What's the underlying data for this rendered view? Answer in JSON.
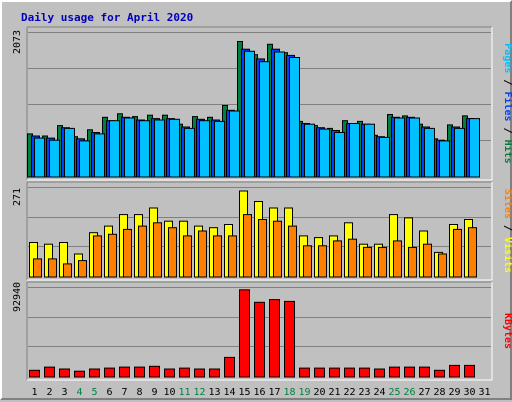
{
  "chart_data": {
    "title": "Daily usage for April 2020",
    "type": "bar",
    "categories": [
      "1",
      "2",
      "3",
      "4",
      "5",
      "6",
      "7",
      "8",
      "9",
      "10",
      "11",
      "12",
      "13",
      "14",
      "15",
      "16",
      "17",
      "18",
      "19",
      "20",
      "21",
      "22",
      "23",
      "24",
      "25",
      "26",
      "27",
      "28",
      "29",
      "30",
      "31"
    ],
    "weekend_days": [
      "4",
      "5",
      "11",
      "12",
      "18",
      "19",
      "25",
      "26"
    ],
    "panels": [
      {
        "id": "hits",
        "ymax": 2073,
        "ymax_label": "2073",
        "ylabel_parts": [
          {
            "text": "Pages",
            "color": "#00c0ff"
          },
          {
            "text": " / ",
            "color": "#000000"
          },
          {
            "text": "Files",
            "color": "#0040ff"
          },
          {
            "text": " / ",
            "color": "#000000"
          },
          {
            "text": "Hits",
            "color": "#008040"
          }
        ],
        "series": [
          {
            "name": "Hits",
            "color": "#008040",
            "values": [
              620,
              590,
              740,
              580,
              680,
              860,
              910,
              870,
              890,
              890,
              760,
              870,
              860,
              1030,
              1950,
              1760,
              1910,
              1790,
              800,
              740,
              700,
              810,
              800,
              600,
              900,
              880,
              760,
              550,
              750,
              880,
              0
            ]
          },
          {
            "name": "Files",
            "color": "#0040ff",
            "values": [
              590,
              560,
              710,
              550,
              640,
              810,
              860,
              820,
              840,
              840,
              720,
              830,
              820,
              960,
              1840,
              1700,
              1840,
              1750,
              770,
              710,
              670,
              770,
              760,
              580,
              860,
              860,
              720,
              530,
              720,
              840,
              0
            ]
          },
          {
            "name": "Pages",
            "color": "#00c0ff",
            "values": [
              560,
              530,
              700,
              520,
              620,
              810,
              850,
              810,
              820,
              830,
              700,
              810,
              800,
              950,
              1810,
              1660,
              1800,
              1720,
              760,
              690,
              640,
              770,
              760,
              570,
              850,
              850,
              700,
              520,
              700,
              840,
              0
            ]
          }
        ]
      },
      {
        "id": "visits",
        "ymax": 271,
        "ymax_label": "271",
        "ylabel_parts": [
          {
            "text": "Sites",
            "color": "#ff8000"
          },
          {
            "text": " / ",
            "color": "#000000"
          },
          {
            "text": "Visits",
            "color": "#ffff00"
          }
        ],
        "series": [
          {
            "name": "Visits",
            "color": "#ffff00",
            "values": [
              105,
              100,
              105,
              70,
              135,
              155,
              190,
              190,
              210,
              170,
              170,
              155,
              150,
              160,
              262,
              230,
              210,
              210,
              125,
              120,
              125,
              165,
              100,
              100,
              190,
              180,
              140,
              75,
              160,
              175,
              0
            ]
          },
          {
            "name": "Sites",
            "color": "#ff8000",
            "values": [
              55,
              55,
              40,
              50,
              125,
              130,
              145,
              155,
              165,
              150,
              125,
              140,
              125,
              125,
              190,
              175,
              170,
              155,
              95,
              95,
              110,
              115,
              90,
              90,
              110,
              90,
              100,
              70,
              145,
              150,
              0
            ]
          }
        ]
      },
      {
        "id": "kbytes",
        "ymax": 92940,
        "ymax_label": "92940",
        "ylabel_parts": [
          {
            "text": "KBytes",
            "color": "#ff0000"
          }
        ],
        "series": [
          {
            "name": "KBytes",
            "color": "#ff0000",
            "values": [
              7000,
              10300,
              8400,
              6100,
              8400,
              9300,
              10300,
              10300,
              11200,
              8400,
              9300,
              8400,
              8400,
              20500,
              91100,
              78000,
              80800,
              78900,
              9300,
              9300,
              9300,
              9300,
              9300,
              8400,
              10300,
              10300,
              10300,
              7000,
              12100,
              12100,
              0
            ]
          }
        ]
      }
    ]
  }
}
